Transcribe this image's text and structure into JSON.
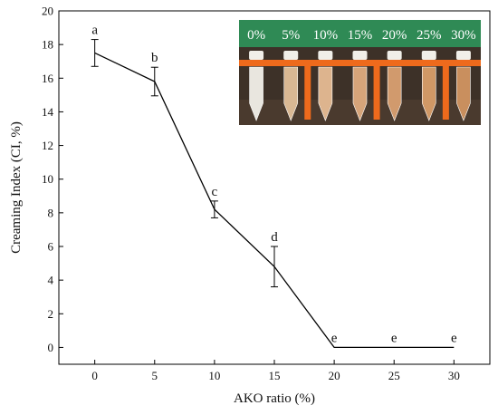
{
  "chart_data": {
    "type": "line",
    "title": "",
    "xlabel": "AKO ratio (%)",
    "ylabel": "Creaming Index (CI, %)",
    "xlim": [
      -3,
      33
    ],
    "ylim": [
      -1,
      20
    ],
    "x_ticks": [
      0,
      5,
      10,
      15,
      20,
      25,
      30
    ],
    "y_ticks": [
      0,
      2,
      4,
      6,
      8,
      10,
      12,
      14,
      16,
      18,
      20
    ],
    "x": [
      0,
      5,
      10,
      15,
      20,
      25,
      30
    ],
    "y": [
      17.5,
      15.8,
      8.2,
      4.8,
      0,
      0,
      0
    ],
    "error": [
      0.8,
      0.85,
      0.5,
      1.2,
      0,
      0,
      0
    ],
    "significance": [
      "a",
      "b",
      "c",
      "d",
      "e",
      "e",
      "e"
    ],
    "grid": false,
    "legend": "none"
  },
  "inset": {
    "labels": [
      "0%",
      "5%",
      "10%",
      "15%",
      "20%",
      "25%",
      "30%"
    ],
    "tube_colors": [
      "#e9e6df",
      "#d9b894",
      "#ddb48e",
      "#d6a47a",
      "#d19a6d",
      "#d09866",
      "#c98f5e"
    ],
    "header_color": "#2f8a55",
    "rack_color": "#ee6a1c"
  }
}
